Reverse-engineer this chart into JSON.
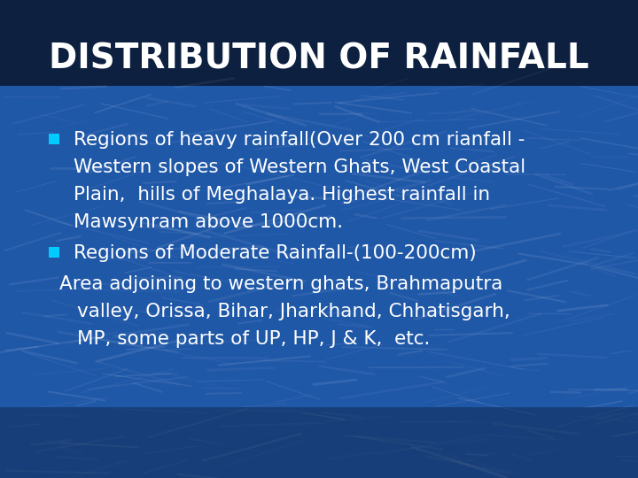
{
  "title": "DISTRIBUTION OF RAINFALL",
  "title_color": "#FFFFFF",
  "title_fontsize": 28,
  "bg_top_color": "#0a1f3a",
  "bg_body_color": "#2060b0",
  "bullet_color": "#00ccff",
  "text_color": "#FFFFFF",
  "bullet1_lines": [
    "Regions of heavy rainfall(Over 200 cm rianfall -",
    "Western slopes of Western Ghats, West Coastal",
    "Plain,  hills of Meghalaya. Highest rainfall in",
    "Mawsynram above 1000cm."
  ],
  "bullet2_line": "Regions of Moderate Rainfall-(100-200cm)",
  "body_lines": [
    "Area adjoining to western ghats, Brahmaputra",
    "valley, Orissa, Bihar, Jharkhand, Chhatisgarh,",
    "MP, some parts of UP, HP, J & K,  etc."
  ],
  "text_fontsize": 15.5
}
